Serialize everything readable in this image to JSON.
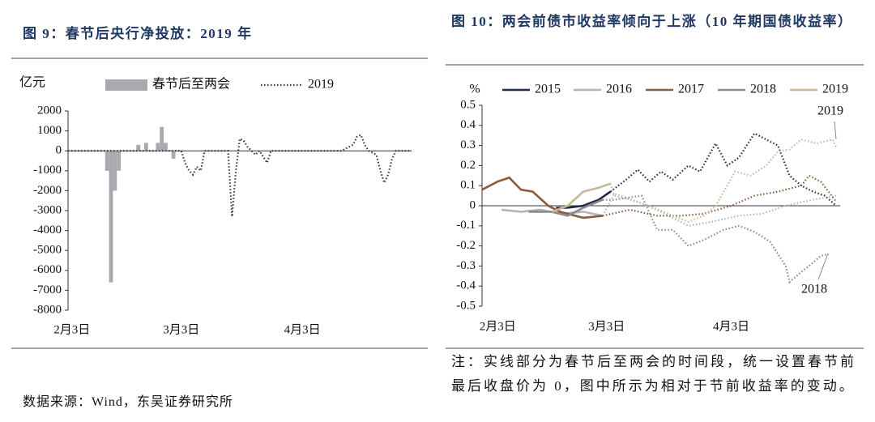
{
  "chart_data": [
    {
      "type": "bar_line",
      "title": "图 9：春节后央行净投放：2019 年",
      "y_label": "亿元",
      "source": "数据来源：Wind，东吴证券研究所",
      "xlim": [
        0,
        88
      ],
      "xticks": [
        {
          "value": 1,
          "label": "2月3日"
        },
        {
          "value": 29,
          "label": "3月3日"
        },
        {
          "value": 60,
          "label": "4月3日"
        }
      ],
      "ylim": [
        -8000,
        2000
      ],
      "yticks": [
        2000,
        1000,
        0,
        -1000,
        -2000,
        -3000,
        -4000,
        -5000,
        -6000,
        -7000,
        -8000
      ],
      "series": [
        {
          "name": "春节后至两会",
          "type": "bar",
          "color": "#a9a9b0",
          "x": [
            10,
            11,
            12,
            13,
            18,
            20,
            23,
            24,
            25,
            27
          ],
          "values": [
            -1000,
            -6600,
            -2000,
            -1000,
            300,
            400,
            400,
            1200,
            400,
            -400
          ]
        },
        {
          "name": "2019",
          "type": "line",
          "style": "dotted",
          "color": "#2f3a4a",
          "x": [
            0,
            3,
            6,
            9,
            12,
            15,
            18,
            21,
            24,
            27,
            29,
            30,
            31,
            32,
            33,
            34,
            35,
            38,
            41,
            42,
            43,
            44,
            45,
            46,
            48,
            49,
            50,
            51,
            52,
            55,
            60,
            65,
            70,
            73,
            74,
            75,
            76,
            77,
            79,
            80,
            81,
            82,
            83,
            84,
            86,
            88
          ],
          "values": [
            0,
            0,
            0,
            0,
            0,
            0,
            0,
            0,
            0,
            0,
            0,
            -600,
            -1000,
            -1200,
            -800,
            -1000,
            0,
            0,
            0,
            -3300,
            -1000,
            600,
            500,
            200,
            -200,
            0,
            -300,
            -600,
            0,
            0,
            0,
            0,
            0,
            300,
            700,
            800,
            300,
            0,
            -200,
            -1000,
            -1600,
            -1200,
            -400,
            0,
            0,
            0
          ]
        }
      ]
    },
    {
      "type": "line",
      "title": "图 10：两会前债市收益率倾向于上涨（10 年期国债收益率）",
      "y_label": "%",
      "note": "注：实线部分为春节后至两会的时间段，统一设置春节前最后收盘价为 0，图中所示为相对于节前收益率的变动。",
      "xlim": [
        0,
        92
      ],
      "xticks": [
        {
          "value": 4,
          "label": "2月3日"
        },
        {
          "value": 32,
          "label": "3月3日"
        },
        {
          "value": 64,
          "label": "4月3日"
        }
      ],
      "ylim": [
        -0.5,
        0.5
      ],
      "yticks": [
        0.5,
        0.4,
        0.3,
        0.2,
        0.1,
        0,
        -0.1,
        -0.2,
        -0.3,
        -0.4,
        -0.5
      ],
      "annotations": [
        "2019",
        "2018"
      ],
      "series": [
        {
          "name": "2015",
          "color": "#1f2b45",
          "solid": {
            "x": [
              19,
              22,
              26,
              30,
              33
            ],
            "values": [
              -0.01,
              -0.01,
              0.0,
              0.03,
              0.07
            ]
          },
          "dotted": {
            "x": [
              33,
              35,
              37,
              40,
              43,
              46,
              49,
              53,
              56,
              60,
              63,
              66,
              70,
              73,
              76,
              79,
              82,
              85,
              88,
              91
            ],
            "values": [
              0.07,
              0.1,
              0.13,
              0.18,
              0.12,
              0.17,
              0.13,
              0.2,
              0.17,
              0.31,
              0.2,
              0.24,
              0.36,
              0.33,
              0.3,
              0.15,
              0.1,
              0.07,
              0.05,
              0.0
            ]
          }
        },
        {
          "name": "2016",
          "color": "#b4b4b8",
          "solid": {
            "x": [
              5,
              10,
              15,
              20,
              26,
              31
            ],
            "values": [
              -0.02,
              -0.03,
              -0.02,
              -0.04,
              -0.03,
              -0.05
            ]
          },
          "dotted": {
            "x": [
              31,
              34,
              40,
              47,
              53,
              59,
              66,
              72,
              78,
              85,
              91
            ],
            "values": [
              -0.05,
              0.06,
              0.02,
              -0.04,
              -0.1,
              -0.08,
              -0.05,
              -0.04,
              0.0,
              0.03,
              0.05
            ]
          }
        },
        {
          "name": "2017",
          "color": "#8c5a3c",
          "solid": {
            "x": [
              0,
              4,
              7,
              10,
              13,
              17,
              20,
              26,
              31
            ],
            "values": [
              0.08,
              0.12,
              0.14,
              0.08,
              0.07,
              0.0,
              -0.03,
              -0.06,
              -0.05
            ]
          },
          "dotted": {
            "x": [
              31,
              38,
              45,
              51,
              57,
              64,
              70,
              76,
              82,
              84,
              87,
              89,
              91
            ],
            "values": [
              -0.05,
              -0.02,
              -0.05,
              -0.05,
              -0.04,
              0.0,
              0.05,
              0.07,
              0.1,
              0.15,
              0.12,
              0.07,
              0.02
            ]
          }
        },
        {
          "name": "2018",
          "color": "#8a8a8e",
          "solid": {
            "x": [
              12,
              18,
              22,
              26,
              31
            ],
            "values": [
              -0.03,
              -0.03,
              -0.05,
              -0.01,
              0.03
            ]
          },
          "dotted": {
            "x": [
              31,
              34,
              41,
              45,
              49,
              53,
              57,
              62,
              66,
              70,
              74,
              78,
              79,
              82,
              84,
              87,
              89
            ],
            "values": [
              0.03,
              0.03,
              0.05,
              -0.12,
              -0.12,
              -0.2,
              -0.17,
              -0.12,
              -0.1,
              -0.13,
              -0.18,
              -0.3,
              -0.38,
              -0.33,
              -0.3,
              -0.25,
              -0.24
            ]
          }
        },
        {
          "name": "2019",
          "color": "#c9b896",
          "solid": {
            "x": [
              18,
              22,
              26,
              30,
              33
            ],
            "values": [
              -0.03,
              0.0,
              0.07,
              0.09,
              0.11
            ]
          },
          "dotted": {
            "x": [
              33,
              34,
              38,
              43,
              49,
              53,
              57,
              60,
              65,
              69,
              73,
              76,
              79,
              82,
              86,
              90,
              91
            ],
            "values": [
              0.11,
              0.05,
              0.03,
              0.0,
              -0.05,
              -0.08,
              -0.05,
              0.0,
              0.17,
              0.15,
              0.2,
              0.27,
              0.28,
              0.33,
              0.31,
              0.33,
              0.29
            ]
          }
        }
      ]
    }
  ]
}
